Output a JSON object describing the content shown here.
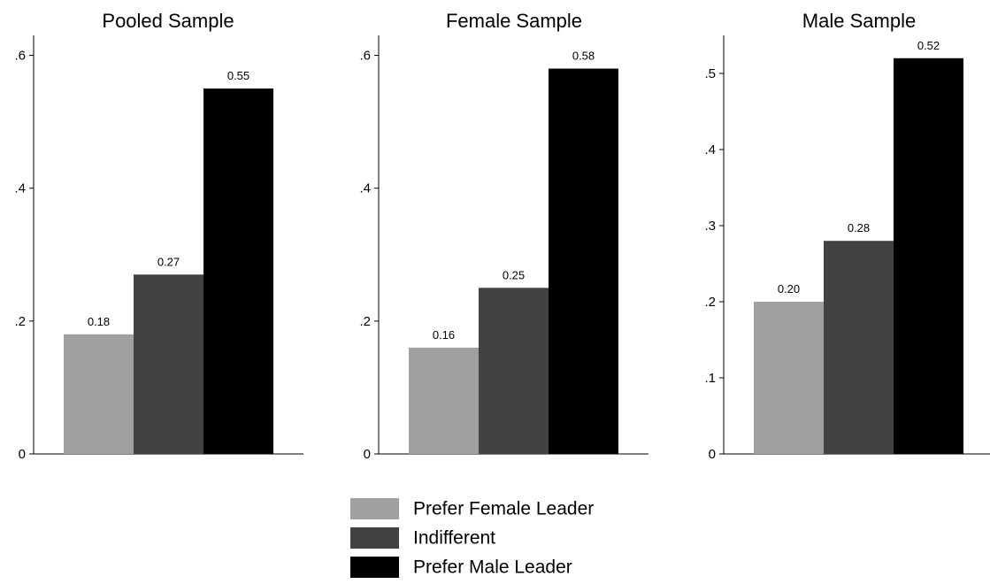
{
  "chart_data": [
    {
      "type": "bar",
      "title": "Pooled Sample",
      "categories": [
        "Prefer Female Leader",
        "Indifferent",
        "Prefer Male Leader"
      ],
      "values": [
        0.18,
        0.27,
        0.55
      ],
      "value_labels": [
        "0.18",
        "0.27",
        "0.55"
      ],
      "ylim": [
        0,
        0.63
      ],
      "yticks": [
        0,
        0.2,
        0.4,
        0.6
      ],
      "ytick_labels": [
        "0",
        ".2",
        ".4",
        ".6"
      ],
      "colors": [
        "#a0a0a0",
        "#424242",
        "#000000"
      ],
      "grid": false
    },
    {
      "type": "bar",
      "title": "Female Sample",
      "categories": [
        "Prefer Female Leader",
        "Indifferent",
        "Prefer Male Leader"
      ],
      "values": [
        0.16,
        0.25,
        0.58
      ],
      "value_labels": [
        "0.16",
        "0.25",
        "0.58"
      ],
      "ylim": [
        0,
        0.63
      ],
      "yticks": [
        0,
        0.2,
        0.4,
        0.6
      ],
      "ytick_labels": [
        "0",
        ".2",
        ".4",
        ".6"
      ],
      "colors": [
        "#a0a0a0",
        "#424242",
        "#000000"
      ],
      "grid": false
    },
    {
      "type": "bar",
      "title": "Male Sample",
      "categories": [
        "Prefer Female Leader",
        "Indifferent",
        "Prefer Male Leader"
      ],
      "values": [
        0.2,
        0.28,
        0.52
      ],
      "value_labels": [
        "0.20",
        "0.28",
        "0.52"
      ],
      "ylim": [
        0,
        0.55
      ],
      "yticks": [
        0,
        0.1,
        0.2,
        0.3,
        0.4,
        0.5
      ],
      "ytick_labels": [
        "0",
        ".1",
        ".2",
        ".3",
        ".4",
        ".5"
      ],
      "colors": [
        "#a0a0a0",
        "#424242",
        "#000000"
      ],
      "grid": false
    }
  ],
  "legend": {
    "position": "bottom-center",
    "items": [
      {
        "label": "Prefer Female Leader",
        "color": "#a0a0a0"
      },
      {
        "label": "Indifferent",
        "color": "#424242"
      },
      {
        "label": "Prefer Male Leader",
        "color": "#000000"
      }
    ]
  }
}
